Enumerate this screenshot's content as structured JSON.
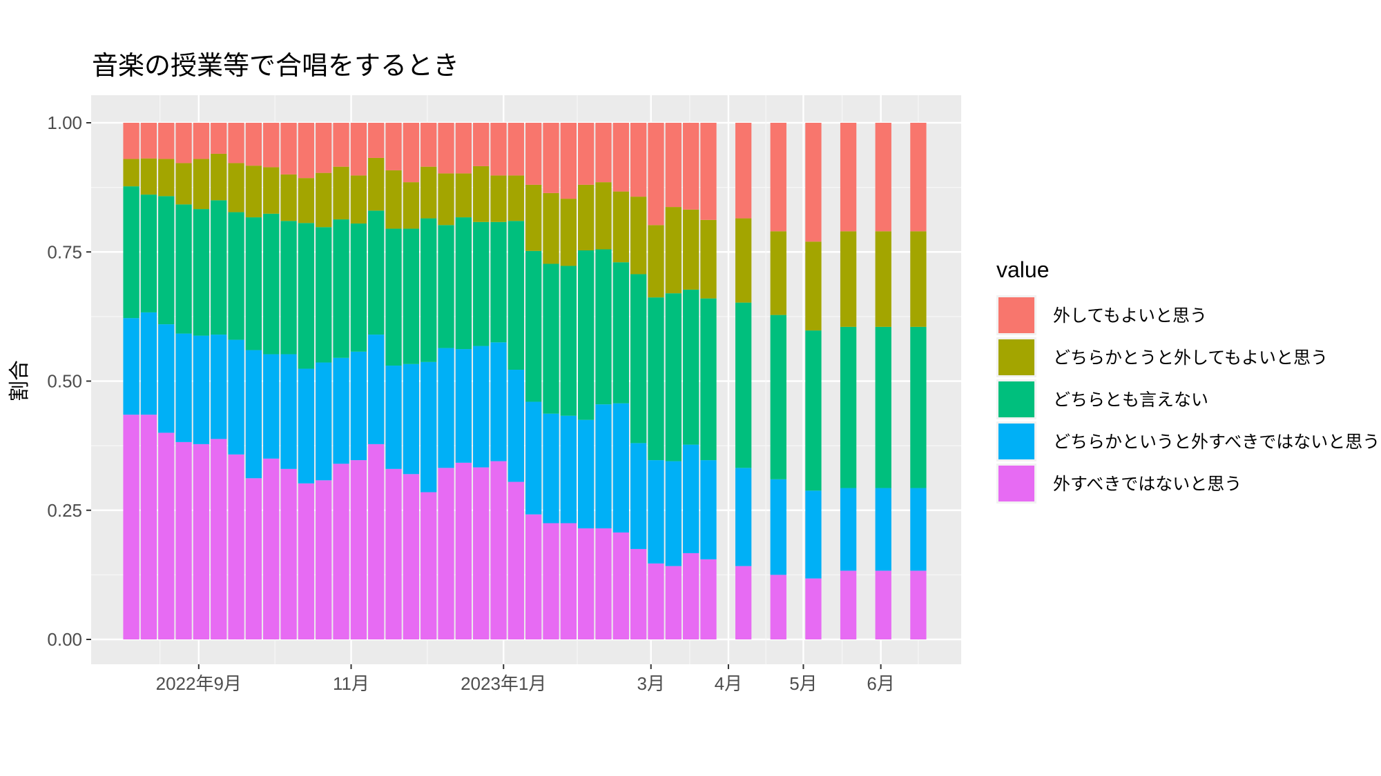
{
  "chart_data": {
    "type": "bar",
    "stacked": true,
    "title": "音楽の授業等で合唱をするとき",
    "ylabel": "割合",
    "ylim": [
      0,
      1
    ],
    "y_ticks": [
      "0.00",
      "0.25",
      "0.50",
      "0.75",
      "1.00"
    ],
    "x_tick_labels": [
      "2022年9月",
      "11月",
      "2023年1月",
      "3月",
      "4月",
      "5月",
      "6月"
    ],
    "grid": true,
    "legend": {
      "title": "value",
      "position": "right"
    },
    "x": [
      "2022-08-05",
      "2022-08-12",
      "2022-08-19",
      "2022-08-26",
      "2022-09-02",
      "2022-09-09",
      "2022-09-16",
      "2022-09-23",
      "2022-09-30",
      "2022-10-07",
      "2022-10-14",
      "2022-10-21",
      "2022-10-28",
      "2022-11-04",
      "2022-11-11",
      "2022-11-18",
      "2022-11-25",
      "2022-12-02",
      "2022-12-09",
      "2022-12-16",
      "2022-12-23",
      "2022-12-30",
      "2023-01-06",
      "2023-01-13",
      "2023-01-20",
      "2023-01-27",
      "2023-02-03",
      "2023-02-10",
      "2023-02-17",
      "2023-02-24",
      "2023-03-03",
      "2023-03-10",
      "2023-03-17",
      "2023-03-24",
      "2023-04-07",
      "2023-04-21",
      "2023-05-05",
      "2023-05-19",
      "2023-06-02",
      "2023-06-16"
    ],
    "series": [
      {
        "name": "外すべきではないと思う",
        "color": "#E76BF3",
        "values": [
          0.435,
          0.435,
          0.4,
          0.382,
          0.378,
          0.388,
          0.358,
          0.312,
          0.35,
          0.33,
          0.302,
          0.308,
          0.34,
          0.347,
          0.378,
          0.33,
          0.32,
          0.285,
          0.332,
          0.342,
          0.333,
          0.345,
          0.305,
          0.242,
          0.225,
          0.225,
          0.215,
          0.215,
          0.207,
          0.175,
          0.147,
          0.142,
          0.167,
          0.155,
          0.142,
          0.125,
          0.118,
          0.133,
          0.133,
          0.133
        ]
      },
      {
        "name": "どちらかというと外すべきではないと思う",
        "color": "#00B0F6",
        "values": [
          0.187,
          0.198,
          0.21,
          0.21,
          0.21,
          0.202,
          0.222,
          0.248,
          0.202,
          0.222,
          0.222,
          0.228,
          0.205,
          0.21,
          0.212,
          0.2,
          0.213,
          0.252,
          0.232,
          0.22,
          0.235,
          0.23,
          0.217,
          0.218,
          0.212,
          0.208,
          0.21,
          0.24,
          0.25,
          0.205,
          0.2,
          0.203,
          0.21,
          0.192,
          0.19,
          0.185,
          0.17,
          0.16,
          0.16,
          0.16
        ]
      },
      {
        "name": "どちらとも言えない",
        "color": "#00BF7D",
        "values": [
          0.255,
          0.228,
          0.248,
          0.25,
          0.245,
          0.26,
          0.247,
          0.257,
          0.272,
          0.258,
          0.282,
          0.262,
          0.268,
          0.248,
          0.24,
          0.265,
          0.262,
          0.278,
          0.238,
          0.255,
          0.24,
          0.233,
          0.288,
          0.292,
          0.29,
          0.29,
          0.328,
          0.3,
          0.273,
          0.327,
          0.315,
          0.325,
          0.3,
          0.313,
          0.32,
          0.318,
          0.31,
          0.312,
          0.312,
          0.312
        ]
      },
      {
        "name": "どちらかとうと外してもよいと思う",
        "color": "#A3A500",
        "values": [
          0.053,
          0.07,
          0.072,
          0.08,
          0.097,
          0.09,
          0.095,
          0.1,
          0.09,
          0.09,
          0.087,
          0.105,
          0.102,
          0.093,
          0.102,
          0.113,
          0.09,
          0.1,
          0.1,
          0.085,
          0.108,
          0.09,
          0.088,
          0.128,
          0.137,
          0.13,
          0.127,
          0.13,
          0.137,
          0.15,
          0.14,
          0.167,
          0.155,
          0.152,
          0.163,
          0.162,
          0.172,
          0.185,
          0.185,
          0.185
        ]
      },
      {
        "name": "外してもよいと思う",
        "color": "#F8766D",
        "values": [
          0.07,
          0.069,
          0.07,
          0.078,
          0.07,
          0.06,
          0.078,
          0.083,
          0.086,
          0.1,
          0.107,
          0.097,
          0.085,
          0.102,
          0.068,
          0.092,
          0.115,
          0.085,
          0.098,
          0.098,
          0.084,
          0.102,
          0.102,
          0.12,
          0.136,
          0.147,
          0.12,
          0.115,
          0.133,
          0.143,
          0.198,
          0.163,
          0.168,
          0.188,
          0.185,
          0.21,
          0.23,
          0.21,
          0.21,
          0.21
        ]
      }
    ]
  }
}
